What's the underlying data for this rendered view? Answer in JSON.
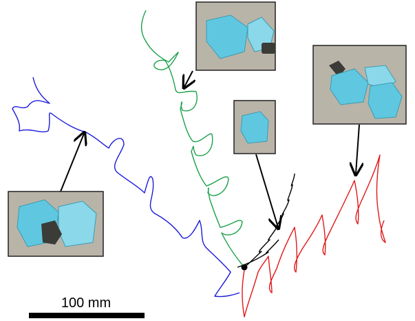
{
  "scale_bar": {
    "label": "100 mm"
  }
}
